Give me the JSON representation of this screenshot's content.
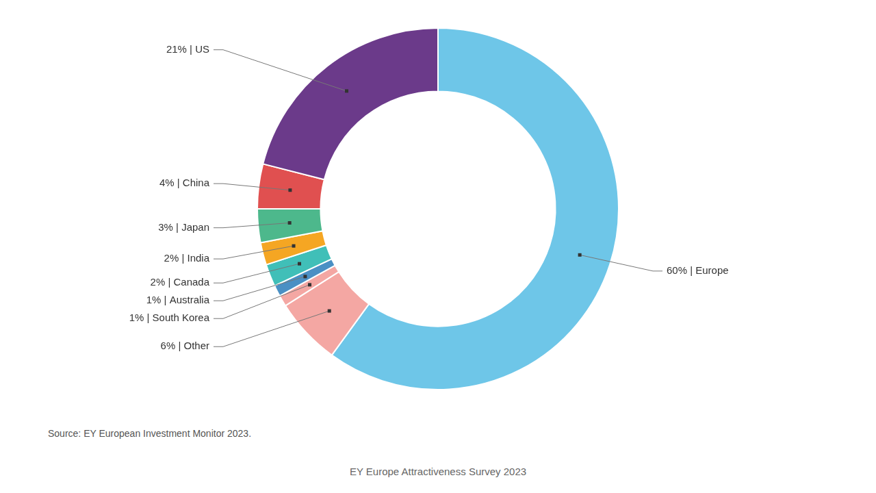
{
  "chart_data": {
    "type": "doughnut",
    "categories": [
      "Europe",
      "Other",
      "South Korea",
      "Australia",
      "Canada",
      "India",
      "Japan",
      "China",
      "US"
    ],
    "values": [
      60,
      6,
      1,
      1,
      2,
      2,
      3,
      4,
      21
    ],
    "colors": [
      "#6EC6E8",
      "#F4A7A3",
      "#F4A7A3",
      "#4A90C4",
      "#40BFB8",
      "#F5A623",
      "#4DB88C",
      "#E05050",
      "#6B3A8A"
    ],
    "data_labels": true,
    "value_labels": [
      "60% | Europe",
      "6% | Other",
      "1% | South Korea",
      "1% | Australia",
      "2% | Canada",
      "2% | India",
      "3% | Japan",
      "4% | China",
      "21% | US"
    ],
    "source": "Source: EY European Investment Monitor 2023.",
    "footer": "EY Europe Attractiveness Survey 2023"
  }
}
